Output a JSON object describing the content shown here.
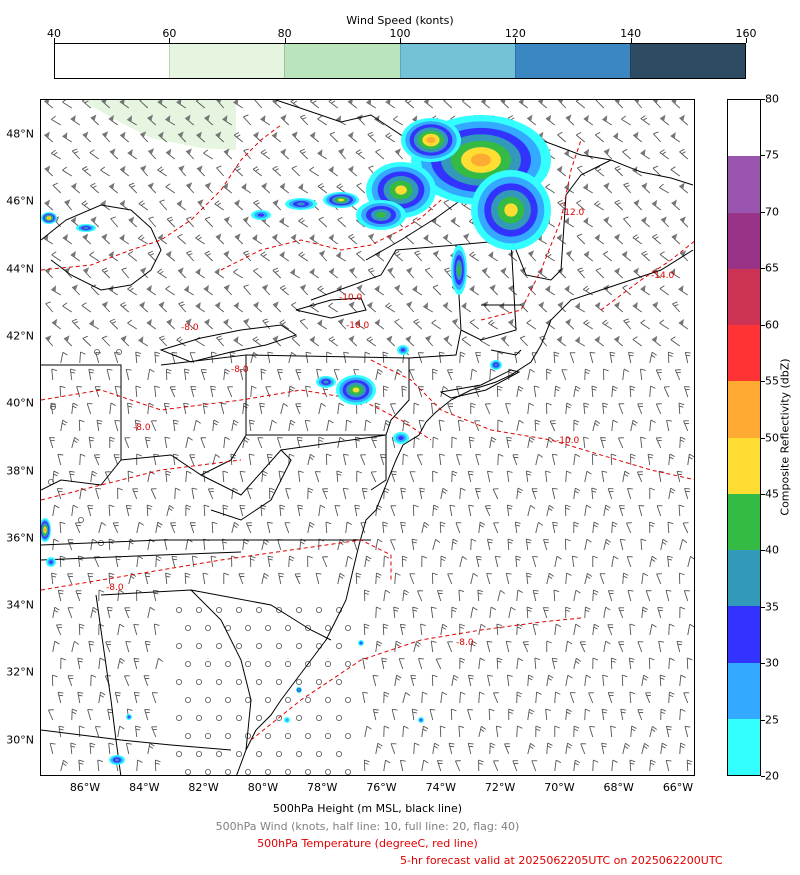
{
  "wind_colorbar": {
    "title": "Wind Speed (konts)",
    "ticks": [
      "40",
      "60",
      "80",
      "100",
      "120",
      "140",
      "160"
    ],
    "colors": [
      "#ffffff",
      "#e5f5e0",
      "#bae4bc",
      "#74c2d8",
      "#3b87c2",
      "#2d4b63"
    ]
  },
  "map": {
    "lat_labels": [
      "48°N",
      "46°N",
      "44°N",
      "42°N",
      "40°N",
      "38°N",
      "36°N",
      "34°N",
      "32°N",
      "30°N"
    ],
    "lon_labels": [
      "86°W",
      "84°W",
      "82°W",
      "80°W",
      "78°W",
      "76°W",
      "74°W",
      "72°W",
      "70°W",
      "68°W",
      "66°W"
    ],
    "temperature_contour_labels": [
      "-8.0",
      "-10.0",
      "-10.0",
      "-12.0",
      "-14.0",
      "-8.0",
      "-8.0",
      "-10.0",
      "-8.0",
      "-8.0"
    ],
    "colors": {
      "coast": "#000000",
      "temperature": "#e00000",
      "barb": "#555555"
    }
  },
  "reflectivity_colorbar": {
    "label": "Composite Reflectivity (dbZ)",
    "ticks": [
      "20",
      "25",
      "30",
      "35",
      "40",
      "45",
      "50",
      "55",
      "60",
      "65",
      "70",
      "75",
      "80"
    ],
    "colors": [
      "#33ffff",
      "#33aaff",
      "#3333ff",
      "#3399bb",
      "#33bb44",
      "#ffdd33",
      "#ffaa33",
      "#ff3333",
      "#cc3355",
      "#993388",
      "#9955b0",
      "#ffffff"
    ]
  },
  "captions": {
    "height": "500hPa Height (m MSL, black line)",
    "wind": "500hPa Wind (knots, half line: 10, full line: 20, flag: 40)",
    "temperature": "500hPa Temperature (degreeC, red line)",
    "forecast": "5-hr forecast valid at 2025062205UTC on 2025062200UTC"
  }
}
